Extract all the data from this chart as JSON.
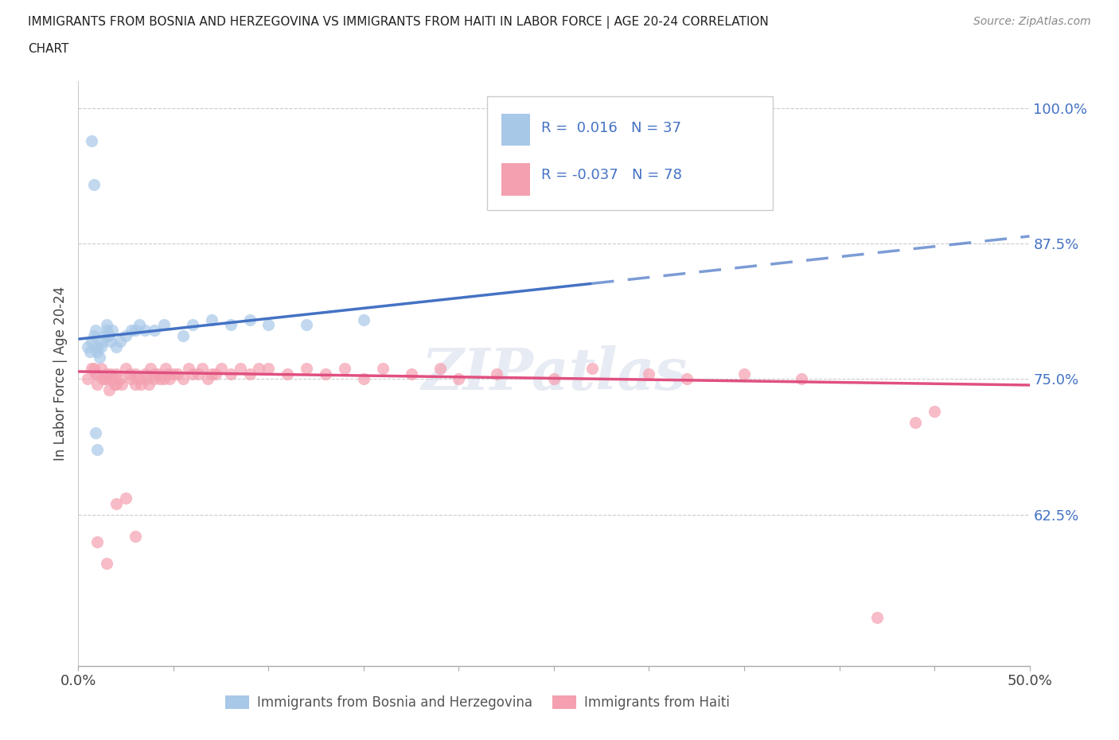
{
  "title_line1": "IMMIGRANTS FROM BOSNIA AND HERZEGOVINA VS IMMIGRANTS FROM HAITI IN LABOR FORCE | AGE 20-24 CORRELATION",
  "title_line2": "CHART",
  "source_text": "Source: ZipAtlas.com",
  "ylabel": "In Labor Force | Age 20-24",
  "xlim": [
    0.0,
    0.5
  ],
  "ylim": [
    0.485,
    1.025
  ],
  "yticks": [
    0.625,
    0.75,
    0.875,
    1.0
  ],
  "ytick_labels": [
    "62.5%",
    "75.0%",
    "87.5%",
    "100.0%"
  ],
  "xticks": [
    0.0,
    0.05,
    0.1,
    0.15,
    0.2,
    0.25,
    0.3,
    0.35,
    0.4,
    0.45,
    0.5
  ],
  "color_bosnia": "#a8c8e8",
  "color_haiti": "#f4a0b0",
  "color_trend_bosnia": "#4472c4",
  "color_trend_haiti": "#e05080",
  "r_bosnia": 0.016,
  "n_bosnia": 37,
  "r_haiti": -0.037,
  "n_haiti": 78,
  "bosnia_x": [
    0.005,
    0.006,
    0.007,
    0.008,
    0.009,
    0.01,
    0.01,
    0.011,
    0.012,
    0.013,
    0.014,
    0.015,
    0.015,
    0.016,
    0.017,
    0.018,
    0.02,
    0.022,
    0.025,
    0.028,
    0.03,
    0.032,
    0.035,
    0.04,
    0.045,
    0.055,
    0.06,
    0.07,
    0.08,
    0.09,
    0.1,
    0.12,
    0.15,
    0.007,
    0.008,
    0.009,
    0.01
  ],
  "bosnia_y": [
    0.78,
    0.775,
    0.785,
    0.79,
    0.795,
    0.775,
    0.78,
    0.77,
    0.78,
    0.785,
    0.79,
    0.795,
    0.8,
    0.79,
    0.785,
    0.795,
    0.78,
    0.785,
    0.79,
    0.795,
    0.795,
    0.8,
    0.795,
    0.795,
    0.8,
    0.79,
    0.8,
    0.805,
    0.8,
    0.805,
    0.8,
    0.8,
    0.805,
    0.97,
    0.93,
    0.7,
    0.685
  ],
  "haiti_x": [
    0.005,
    0.007,
    0.008,
    0.009,
    0.01,
    0.01,
    0.012,
    0.013,
    0.014,
    0.015,
    0.015,
    0.016,
    0.017,
    0.018,
    0.019,
    0.02,
    0.02,
    0.022,
    0.023,
    0.025,
    0.027,
    0.028,
    0.03,
    0.03,
    0.032,
    0.033,
    0.035,
    0.036,
    0.037,
    0.038,
    0.04,
    0.04,
    0.042,
    0.043,
    0.045,
    0.046,
    0.047,
    0.048,
    0.05,
    0.052,
    0.055,
    0.058,
    0.06,
    0.063,
    0.065,
    0.068,
    0.07,
    0.072,
    0.075,
    0.08,
    0.085,
    0.09,
    0.095,
    0.1,
    0.11,
    0.12,
    0.13,
    0.14,
    0.15,
    0.16,
    0.175,
    0.19,
    0.2,
    0.22,
    0.25,
    0.27,
    0.3,
    0.32,
    0.35,
    0.38,
    0.01,
    0.015,
    0.02,
    0.025,
    0.03,
    0.42,
    0.44,
    0.45
  ],
  "haiti_y": [
    0.75,
    0.76,
    0.76,
    0.755,
    0.745,
    0.755,
    0.76,
    0.75,
    0.75,
    0.755,
    0.75,
    0.74,
    0.755,
    0.75,
    0.745,
    0.745,
    0.755,
    0.75,
    0.745,
    0.76,
    0.755,
    0.75,
    0.745,
    0.755,
    0.75,
    0.745,
    0.755,
    0.75,
    0.745,
    0.76,
    0.755,
    0.75,
    0.755,
    0.75,
    0.75,
    0.76,
    0.755,
    0.75,
    0.755,
    0.755,
    0.75,
    0.76,
    0.755,
    0.755,
    0.76,
    0.75,
    0.755,
    0.755,
    0.76,
    0.755,
    0.76,
    0.755,
    0.76,
    0.76,
    0.755,
    0.76,
    0.755,
    0.76,
    0.75,
    0.76,
    0.755,
    0.76,
    0.75,
    0.755,
    0.75,
    0.76,
    0.755,
    0.75,
    0.755,
    0.75,
    0.6,
    0.58,
    0.635,
    0.64,
    0.605,
    0.53,
    0.71,
    0.72
  ]
}
